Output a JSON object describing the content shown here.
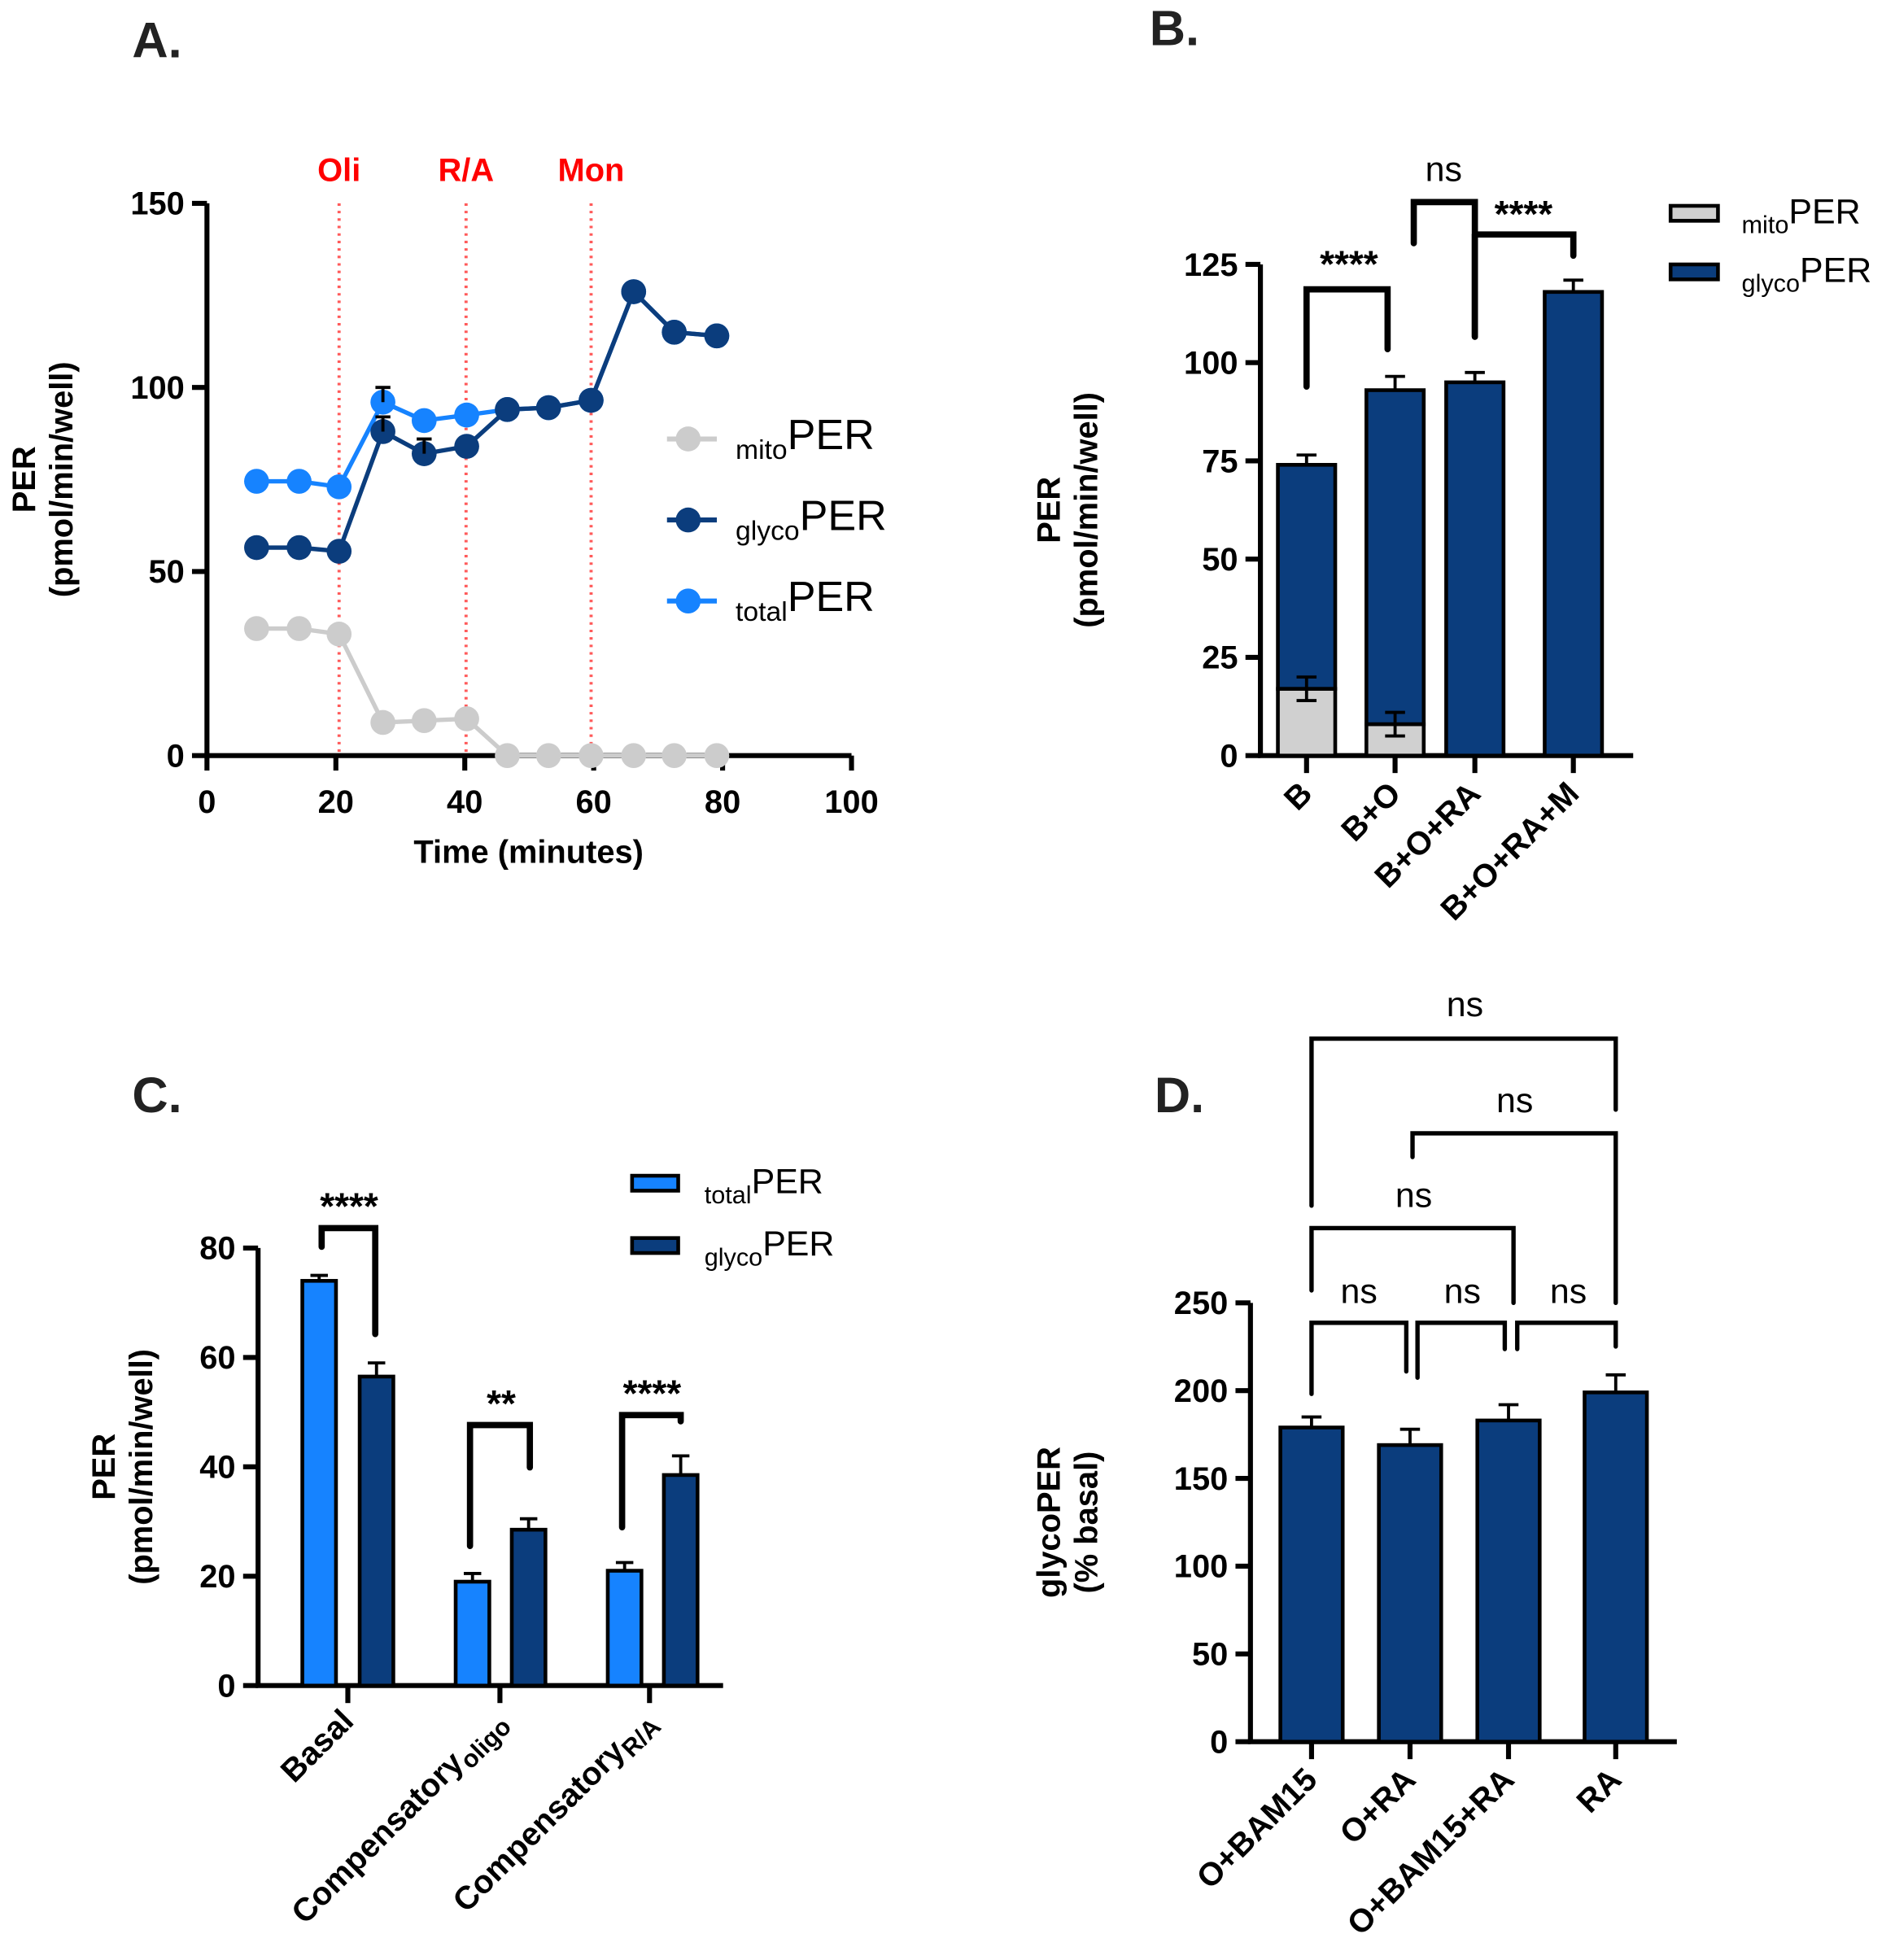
{
  "panels": {
    "A": "A.",
    "B": "B.",
    "C": "C.",
    "D": "D."
  },
  "chart_data": [
    {
      "id": "A",
      "type": "line",
      "xlabel": "Time (minutes)",
      "ylabel": "PER",
      "ylabel2": "(pmol/min/well)",
      "xlim": [
        0,
        100
      ],
      "ylim": [
        0,
        150
      ],
      "xticks": [
        0,
        20,
        40,
        60,
        80,
        100
      ],
      "yticks": [
        0,
        50,
        100,
        150
      ],
      "events": [
        {
          "label": "Oli",
          "x": 20.5
        },
        {
          "label": "R/A",
          "x": 40.2
        },
        {
          "label": "Mon",
          "x": 59.6
        }
      ],
      "x": [
        7.7,
        14.3,
        20.5,
        27.3,
        33.7,
        40.3,
        46.6,
        53.0,
        59.6,
        66.2,
        72.5,
        79.1
      ],
      "series": [
        {
          "sub": "mito",
          "name": "PER",
          "color": "#cccccc",
          "values": [
            34.5,
            34.5,
            33,
            9,
            9.5,
            10,
            0,
            0,
            0,
            0,
            0,
            0
          ],
          "errors": [
            1,
            1,
            1,
            0.5,
            0.5,
            0.5,
            0,
            0,
            0,
            0,
            0,
            0
          ]
        },
        {
          "sub": "glyco",
          "name": "PER",
          "color": "#0b3d7d",
          "values": [
            56.5,
            56.5,
            55.5,
            88,
            82,
            84,
            94,
            94.5,
            96.5,
            126,
            115,
            114
          ],
          "errors": [
            1,
            1,
            1,
            4,
            4,
            1,
            1,
            1,
            1,
            1,
            1,
            1
          ]
        },
        {
          "sub": "total",
          "name": "PER",
          "color": "#1683ff",
          "values": [
            74.5,
            74.5,
            73,
            96,
            91,
            92.5,
            94,
            94.5,
            96.5,
            126,
            115,
            114
          ],
          "errors": [
            1,
            1,
            1,
            4,
            1,
            1,
            1,
            1,
            1,
            1,
            1,
            1
          ]
        }
      ],
      "legend": "right"
    },
    {
      "id": "B",
      "type": "bar",
      "stacked": true,
      "ylabel": "PER",
      "ylabel2": "(pmol/min/well)",
      "ylim": [
        0,
        125
      ],
      "yticks": [
        0,
        25,
        50,
        75,
        100,
        125
      ],
      "categories": [
        "B",
        "B+O",
        "B+O+RA",
        "B+O+RA+M"
      ],
      "series": [
        {
          "sub": "mito",
          "name": "PER",
          "color": "#d0d0d0",
          "values": [
            17,
            8,
            0,
            0
          ],
          "errors": [
            3,
            3,
            0,
            0
          ]
        },
        {
          "sub": "glyco",
          "name": "PER",
          "color": "#0b3d7d",
          "values": [
            57,
            85,
            95,
            118
          ],
          "errors": [
            2.5,
            3.5,
            2.5,
            3
          ]
        }
      ],
      "comparisons": [
        {
          "groups": [
            "B",
            "B+O"
          ],
          "label": "****"
        },
        {
          "groups": [
            "B+O",
            "B+O+RA"
          ],
          "label": "ns"
        },
        {
          "groups": [
            "B+O+RA",
            "B+O+RA+M"
          ],
          "label": "****"
        }
      ],
      "legend": "top-right"
    },
    {
      "id": "C",
      "type": "bar",
      "ylabel": "PER",
      "ylabel2": "(pmol/min/well)",
      "ylim": [
        0,
        80
      ],
      "yticks": [
        0,
        20,
        40,
        60,
        80
      ],
      "categories": [
        {
          "main": "Basal",
          "sub": ""
        },
        {
          "main": "Compensatory",
          "sub": "oligo"
        },
        {
          "main": "Compensatory",
          "sub": "R/A"
        }
      ],
      "series": [
        {
          "sub": "total",
          "name": "PER",
          "color": "#1683ff",
          "values": [
            74,
            19,
            21
          ],
          "errors": [
            1,
            1.5,
            1.5
          ]
        },
        {
          "sub": "glyco",
          "name": "PER",
          "color": "#0b3d7d",
          "values": [
            56.5,
            28.5,
            38.5
          ],
          "errors": [
            2.5,
            2,
            3.5
          ]
        }
      ],
      "comparisons": [
        {
          "group": "Basal",
          "label": "****"
        },
        {
          "group": "Compensatory oligo",
          "label": "**"
        },
        {
          "group": "Compensatory R/A",
          "label": "****"
        }
      ],
      "legend": "top-right"
    },
    {
      "id": "D",
      "type": "bar",
      "ylabel": "glycoPER",
      "ylabel2": "(% basal)",
      "ylim": [
        0,
        250
      ],
      "yticks": [
        0,
        50,
        100,
        150,
        200,
        250
      ],
      "categories": [
        "O+BAM15",
        "O+RA",
        "O+BAM15+RA",
        "RA"
      ],
      "series": [
        {
          "name": "glycoPER",
          "color": "#0b3d7d",
          "values": [
            179,
            169,
            183,
            199
          ],
          "errors": [
            6,
            9,
            9,
            10
          ]
        }
      ],
      "comparisons": [
        {
          "groups": [
            "O+BAM15",
            "O+RA"
          ],
          "label": "ns"
        },
        {
          "groups": [
            "O+RA",
            "O+BAM15+RA"
          ],
          "label": "ns"
        },
        {
          "groups": [
            "O+BAM15+RA",
            "RA"
          ],
          "label": "ns"
        },
        {
          "groups": [
            "O+BAM15",
            "O+BAM15+RA"
          ],
          "label": "ns"
        },
        {
          "groups": [
            "O+RA",
            "RA"
          ],
          "label": "ns"
        },
        {
          "groups": [
            "O+BAM15",
            "RA"
          ],
          "label": "ns"
        }
      ]
    }
  ]
}
